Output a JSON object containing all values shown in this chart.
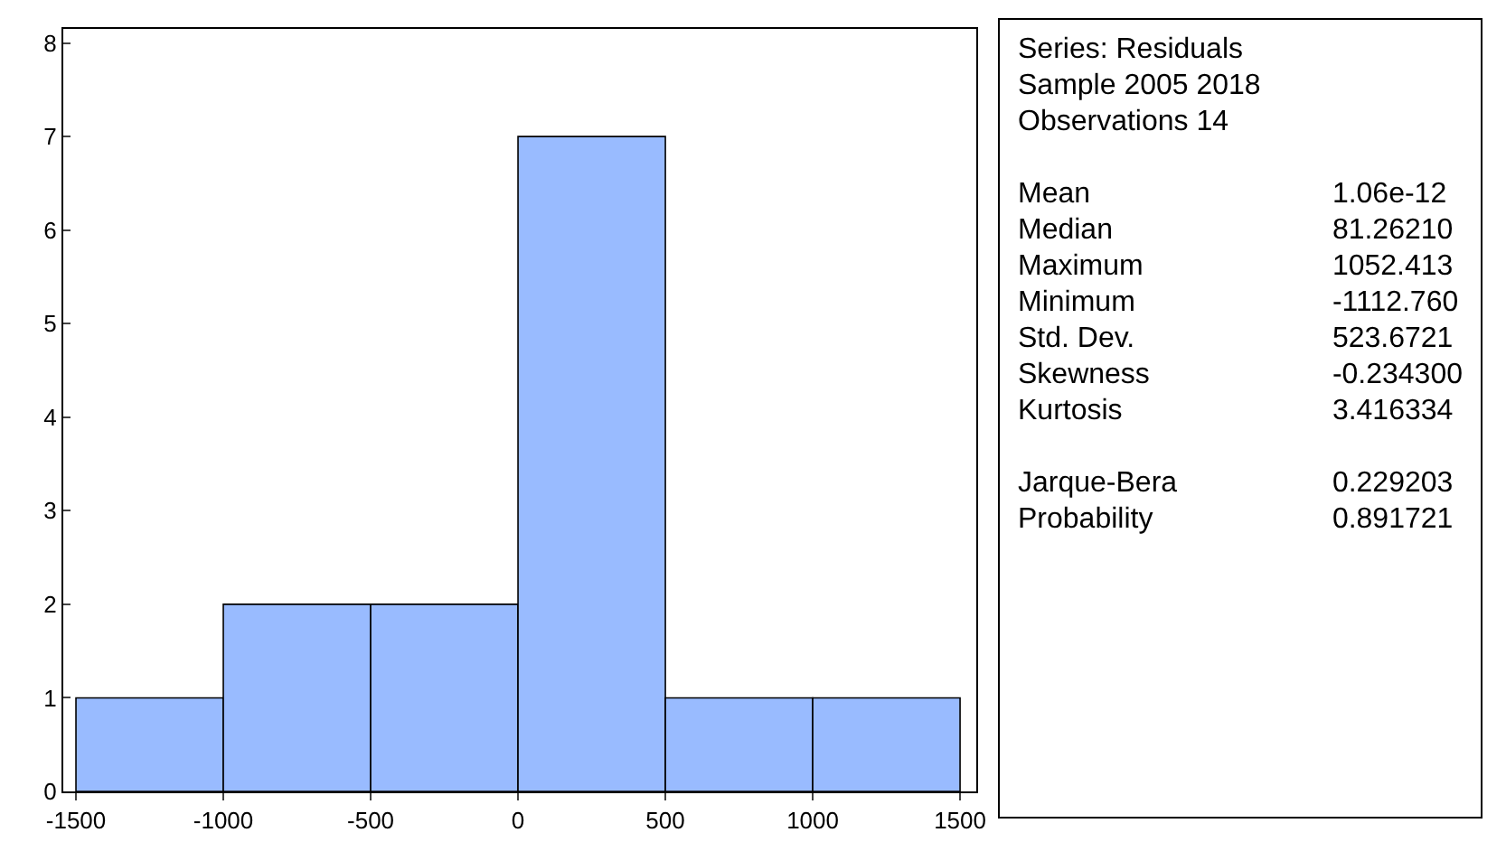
{
  "chart_data": {
    "type": "histogram",
    "bins": [
      -1500,
      -1000,
      -500,
      0,
      500,
      1000,
      1500
    ],
    "values": [
      1,
      2,
      2,
      7,
      1,
      1
    ],
    "color": "#99bbff",
    "xlim": [
      -1543,
      1555
    ],
    "xticks": [
      -1500,
      -1000,
      -500,
      0,
      500,
      1000,
      1500
    ],
    "ylim": [
      0,
      8.15
    ],
    "yticks": [
      0,
      1,
      2,
      3,
      4,
      5,
      6,
      7,
      8
    ],
    "grid": false,
    "legend": false,
    "annotations": [
      "Series: Residuals",
      "Sample 2005 2018",
      "Observations 14",
      "Mean",
      "1.06e-12",
      "Median",
      "81.26210",
      "Maximum",
      "1052.413",
      "Minimum",
      "-1112.760",
      "Std. Dev.",
      "523.6721",
      "Skewness",
      "-0.234300",
      "Kurtosis",
      "3.416334",
      "Jarque-Bera",
      "0.229203",
      "Probability",
      "0.891721"
    ]
  }
}
